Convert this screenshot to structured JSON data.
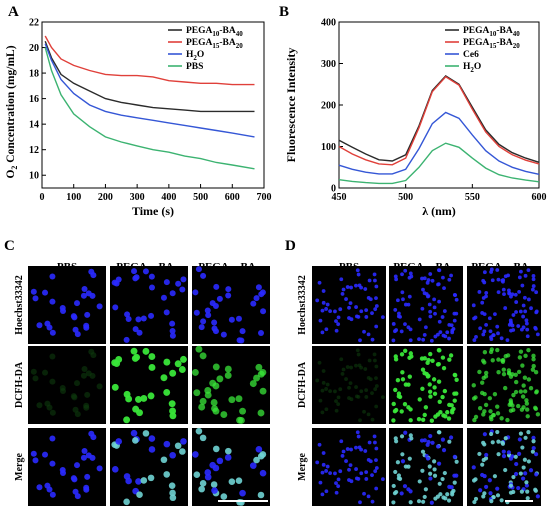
{
  "panels": {
    "A": {
      "letter": "A"
    },
    "B": {
      "letter": "B"
    },
    "C": {
      "letter": "C",
      "columns": [
        "PBS",
        "PEGA",
        "PEGA"
      ],
      "rows": [
        "Hoechst33342",
        "DCFH-DA",
        "Merge"
      ]
    },
    "D": {
      "letter": "D",
      "columns": [
        "PBS",
        "PEGA",
        "PEGA"
      ],
      "rows": [
        "Hoechst33342",
        "DCFH-DA",
        "Merge"
      ]
    }
  },
  "subscripts": {
    "p10": "10",
    "ba40": "40",
    "p15": "15",
    "ba20": "20",
    "ba": "-BA"
  },
  "colors": {
    "black": "#2b2b2b",
    "red": "#e0403a",
    "blue": "#3557d6",
    "green": "#3cb371",
    "nucleus": "#2a2aff",
    "ros": "#39e639",
    "merge": "#6fd3d3"
  },
  "chart_data": [
    {
      "type": "line",
      "xlabel": "Time (s)",
      "ylabel_main": "O",
      "ylabel_sub": "2",
      "ylabel_rest": " Concentration (mg/mL)",
      "xlim": [
        0,
        700
      ],
      "ylim": [
        9,
        22
      ],
      "xticks": [
        0,
        100,
        200,
        300,
        400,
        500,
        600,
        700
      ],
      "yticks": [
        10,
        12,
        14,
        16,
        18,
        20,
        22
      ],
      "legend_position": "top-right",
      "series": [
        {
          "name": "PEGA10-BA40",
          "color": "#2b2b2b",
          "x": [
            10,
            30,
            60,
            100,
            150,
            200,
            250,
            300,
            350,
            400,
            450,
            500,
            550,
            600,
            670
          ],
          "y": [
            20.5,
            19.2,
            17.9,
            17.2,
            16.6,
            16.0,
            15.7,
            15.5,
            15.3,
            15.2,
            15.1,
            15.0,
            15.0,
            15.0,
            15.0
          ]
        },
        {
          "name": "PEGA15-BA20",
          "color": "#e0403a",
          "x": [
            10,
            30,
            60,
            100,
            150,
            200,
            250,
            300,
            350,
            400,
            450,
            500,
            550,
            600,
            670
          ],
          "y": [
            20.9,
            20.0,
            19.1,
            18.6,
            18.2,
            17.9,
            17.8,
            17.8,
            17.7,
            17.4,
            17.3,
            17.2,
            17.2,
            17.1,
            17.1
          ]
        },
        {
          "name": "H2O",
          "color": "#3557d6",
          "x": [
            10,
            30,
            60,
            100,
            150,
            200,
            250,
            300,
            350,
            400,
            450,
            500,
            550,
            600,
            670
          ],
          "y": [
            20.3,
            19.0,
            17.5,
            16.4,
            15.5,
            15.0,
            14.7,
            14.5,
            14.3,
            14.1,
            13.9,
            13.7,
            13.5,
            13.3,
            13.0
          ]
        },
        {
          "name": "PBS",
          "color": "#3cb371",
          "x": [
            10,
            30,
            60,
            100,
            150,
            200,
            250,
            300,
            350,
            400,
            450,
            500,
            550,
            600,
            670
          ],
          "y": [
            20.0,
            18.2,
            16.3,
            14.8,
            13.8,
            13.0,
            12.6,
            12.3,
            12.0,
            11.8,
            11.5,
            11.3,
            11.0,
            10.8,
            10.5
          ]
        }
      ]
    },
    {
      "type": "line",
      "xlabel": "λ (nm)",
      "ylabel": "Fluorescence Intensity",
      "xlim": [
        450,
        600
      ],
      "ylim": [
        0,
        400
      ],
      "xticks": [
        450,
        500,
        550,
        600
      ],
      "yticks": [
        0,
        100,
        200,
        300,
        400
      ],
      "legend_position": "top-right",
      "series": [
        {
          "name": "PEGA10-BA40",
          "color": "#2b2b2b",
          "x": [
            450,
            460,
            470,
            480,
            490,
            500,
            510,
            520,
            530,
            540,
            550,
            560,
            570,
            580,
            590,
            600
          ],
          "y": [
            115,
            98,
            82,
            68,
            65,
            80,
            150,
            235,
            270,
            250,
            195,
            140,
            105,
            85,
            72,
            62
          ]
        },
        {
          "name": "PEGA15-BA20",
          "color": "#e0403a",
          "x": [
            450,
            460,
            470,
            480,
            490,
            500,
            510,
            520,
            530,
            540,
            550,
            560,
            570,
            580,
            590,
            600
          ],
          "y": [
            100,
            82,
            68,
            58,
            56,
            72,
            145,
            232,
            268,
            248,
            190,
            135,
            100,
            80,
            67,
            58
          ]
        },
        {
          "name": "Ce6",
          "color": "#3557d6",
          "x": [
            450,
            460,
            470,
            480,
            490,
            500,
            510,
            520,
            530,
            540,
            550,
            560,
            570,
            580,
            590,
            600
          ],
          "y": [
            55,
            45,
            38,
            34,
            34,
            45,
            95,
            155,
            182,
            168,
            128,
            90,
            65,
            50,
            40,
            33
          ]
        },
        {
          "name": "H2O",
          "color": "#3cb371",
          "x": [
            450,
            460,
            470,
            480,
            490,
            500,
            510,
            520,
            530,
            540,
            550,
            560,
            570,
            580,
            590,
            600
          ],
          "y": [
            20,
            16,
            13,
            11,
            11,
            18,
            50,
            90,
            108,
            98,
            72,
            48,
            32,
            24,
            19,
            15
          ]
        }
      ]
    }
  ]
}
